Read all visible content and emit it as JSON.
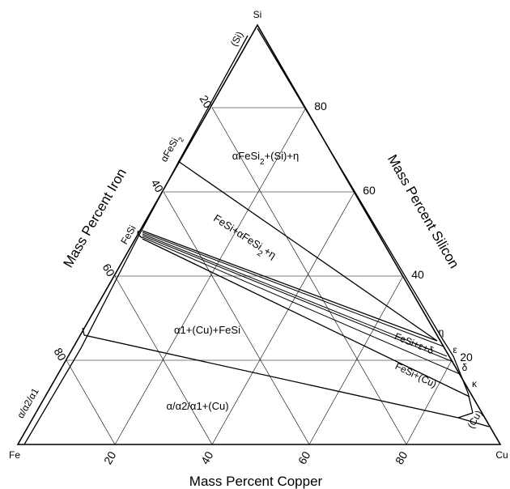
{
  "vertices": {
    "top": "Si",
    "left": "Fe",
    "right": "Cu"
  },
  "axes": {
    "left_title": "Mass Percent Iron",
    "right_title": "Mass Percent Silicon",
    "bottom_title": "Mass Percent Copper"
  },
  "ticks": {
    "iron": [
      "20",
      "40",
      "60",
      "80"
    ],
    "silicon": [
      "80",
      "60",
      "40",
      "20"
    ],
    "copper": [
      "20",
      "40",
      "60",
      "80"
    ]
  },
  "regions": {
    "r1": {
      "base": "αFeSi",
      "sub": "2",
      "tail": "+(Si)+η"
    },
    "r2": {
      "base": "FeSi+αFeSi",
      "sub": "2",
      "tail": "+η"
    },
    "r3": "α1+(Cu)+FeSi",
    "r4": "α/α2/α1+(Cu)",
    "r5": "FeSi+ε+δ",
    "r6": "FeSi+(Cu)"
  },
  "phases": {
    "si": "(Si)",
    "afesi2": {
      "base": "αFeSi",
      "sub": "2"
    },
    "fesi": "FeSi",
    "alpha_left": "α/α2/α1",
    "cu": "(Cu)",
    "eta": "η",
    "eps": "ε",
    "delta": "δ",
    "kappa": "κ"
  }
}
